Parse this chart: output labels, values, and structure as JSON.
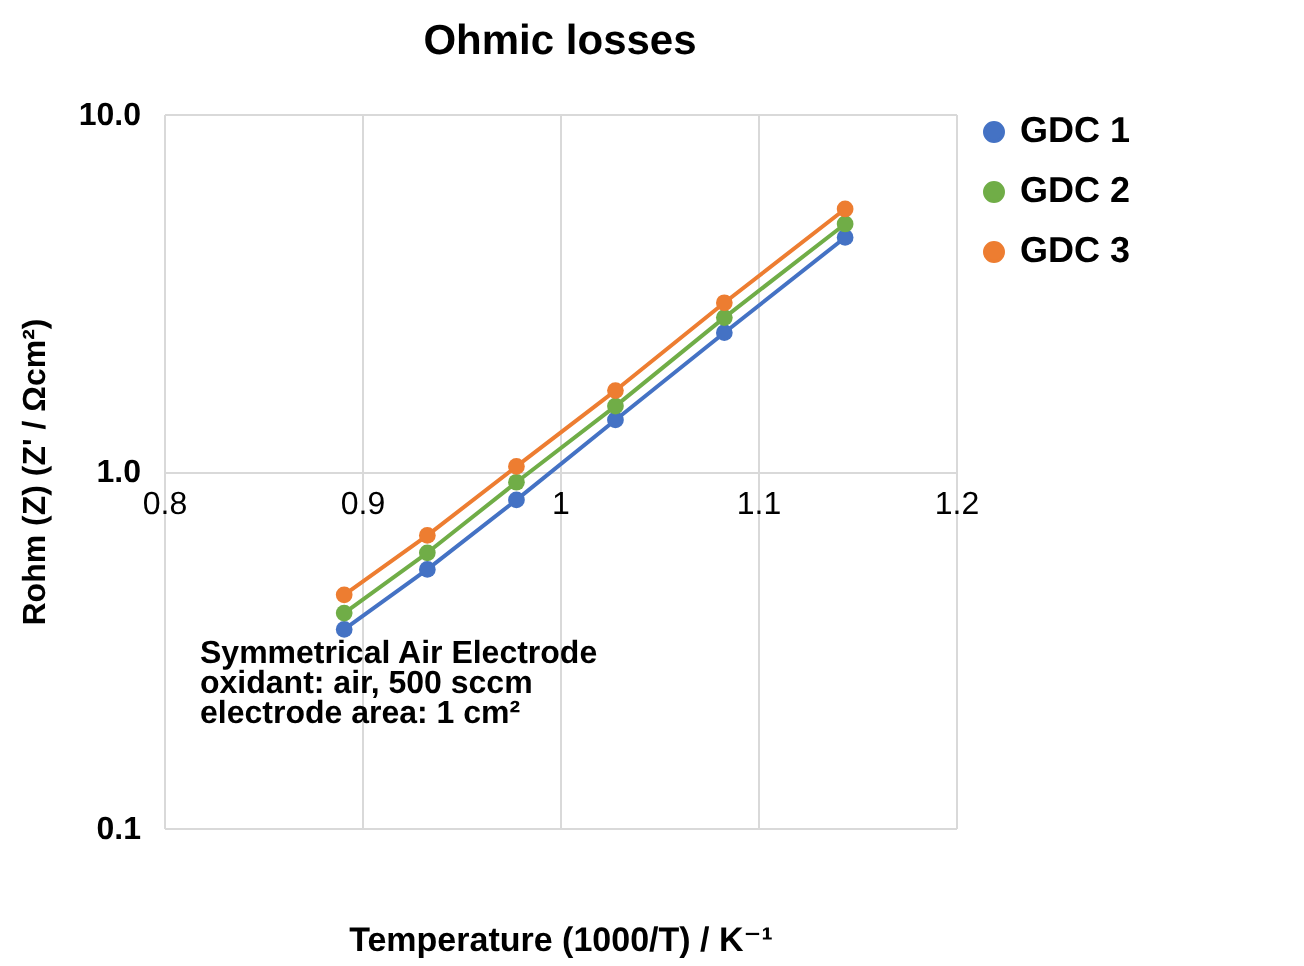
{
  "chart_data": {
    "type": "line",
    "title": "Ohmic losses",
    "xlabel": "Temperature (1000/T) / K⁻¹",
    "ylabel": "Rohm (Z) (Z' / Ωcm²)",
    "x": [
      0.891,
      0.933,
      0.978,
      1.028,
      1.083,
      1.144
    ],
    "series": [
      {
        "name": "GDC 1",
        "color": "#4472c4",
        "values": [
          0.36,
          0.53,
          0.83,
          1.39,
          2.44,
          4.51
        ]
      },
      {
        "name": "GDC 2",
        "color": "#70ad47",
        "values": [
          0.4,
          0.59,
          0.93,
          1.52,
          2.69,
          4.92
        ]
      },
      {
        "name": "GDC 3",
        "color": "#ed7d31",
        "values": [
          0.45,
          0.66,
          1.03,
          1.68,
          2.96,
          5.42
        ]
      }
    ],
    "xlim": [
      0.8,
      1.2
    ],
    "xticks": [
      0.8,
      0.9,
      1,
      1.1,
      1.2
    ],
    "ylim": [
      0.1,
      10
    ],
    "yticks": [
      {
        "value": 0.1,
        "label": "0.1"
      },
      {
        "value": 1,
        "label": "1.0"
      },
      {
        "value": 10,
        "label": "10.0"
      }
    ],
    "log": "y",
    "grid": true,
    "legend": "right",
    "marker": "circle",
    "line_style": "solid",
    "annotations": [
      "Symmetrical Air Electrode",
      "oxidant: air, 500 sccm",
      "electrode area: 1 cm²"
    ]
  }
}
